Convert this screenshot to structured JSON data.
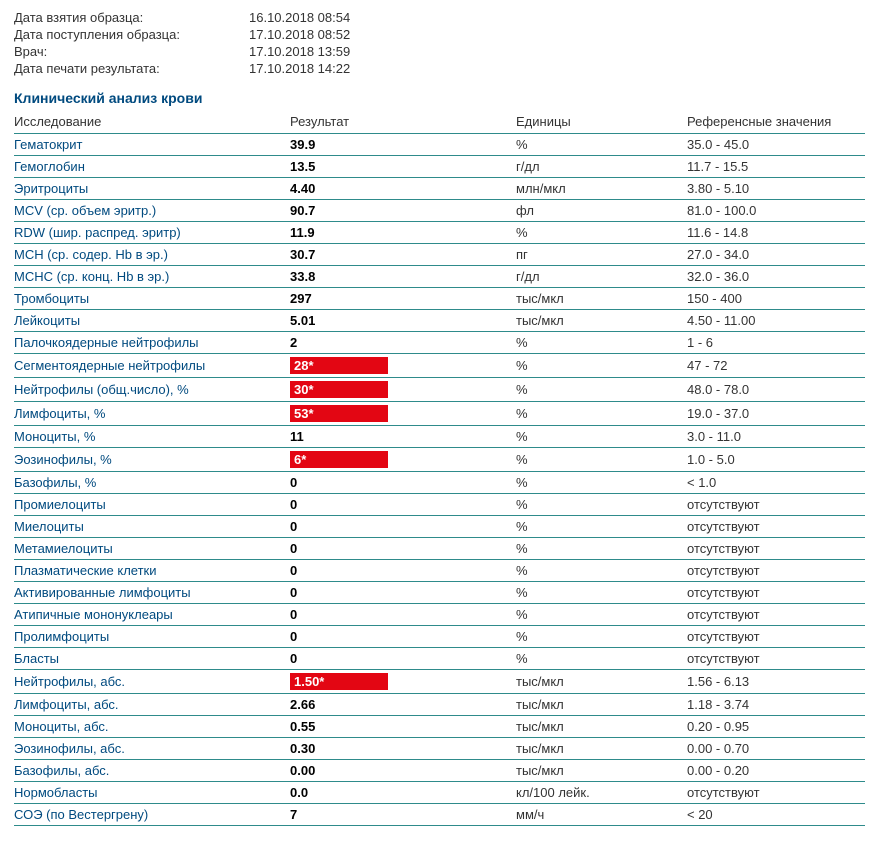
{
  "meta": [
    {
      "label": "Дата взятия образца:",
      "value": "16.10.2018 08:54"
    },
    {
      "label": "Дата поступления образца:",
      "value": "17.10.2018 08:52"
    },
    {
      "label": "Врач:",
      "value": "17.10.2018 13:59"
    },
    {
      "label": "Дата печати результата:",
      "value": "17.10.2018 14:22"
    }
  ],
  "section_title": "Клинический анализ крови",
  "columns": {
    "name": "Исследование",
    "result": "Результат",
    "units": "Единицы",
    "ref": "Референсные значения"
  },
  "flag_color": "#e30613",
  "rows": [
    {
      "name": "Гематокрит",
      "result": "39.9",
      "units": "%",
      "ref": "35.0 - 45.0",
      "flag": false
    },
    {
      "name": "Гемоглобин",
      "result": "13.5",
      "units": "г/дл",
      "ref": "11.7 - 15.5",
      "flag": false
    },
    {
      "name": "Эритроциты",
      "result": "4.40",
      "units": "млн/мкл",
      "ref": "3.80 - 5.10",
      "flag": false
    },
    {
      "name": "MCV (ср. объем эритр.)",
      "result": "90.7",
      "units": "фл",
      "ref": "81.0 - 100.0",
      "flag": false
    },
    {
      "name": "RDW (шир. распред. эритр)",
      "result": "11.9",
      "units": "%",
      "ref": "11.6 - 14.8",
      "flag": false
    },
    {
      "name": "MCH (ср. содер. Hb в эр.)",
      "result": "30.7",
      "units": "пг",
      "ref": "27.0 - 34.0",
      "flag": false
    },
    {
      "name": "MCHC (ср. конц. Hb в эр.)",
      "result": "33.8",
      "units": "г/дл",
      "ref": "32.0 - 36.0",
      "flag": false
    },
    {
      "name": "Тромбоциты",
      "result": "297",
      "units": "тыс/мкл",
      "ref": "150 - 400",
      "flag": false
    },
    {
      "name": "Лейкоциты",
      "result": "5.01",
      "units": "тыс/мкл",
      "ref": "4.50 - 11.00",
      "flag": false
    },
    {
      "name": "Палочкоядерные нейтрофилы",
      "result": "2",
      "units": "%",
      "ref": "1 - 6",
      "flag": false
    },
    {
      "name": "Сегментоядерные нейтрофилы",
      "result": "28*",
      "units": "%",
      "ref": "47 - 72",
      "flag": true
    },
    {
      "name": "Нейтрофилы (общ.число), %",
      "result": "30*",
      "units": "%",
      "ref": "48.0 - 78.0",
      "flag": true
    },
    {
      "name": "Лимфоциты, %",
      "result": "53*",
      "units": "%",
      "ref": "19.0 - 37.0",
      "flag": true
    },
    {
      "name": "Моноциты, %",
      "result": "11",
      "units": "%",
      "ref": "3.0 - 11.0",
      "flag": false
    },
    {
      "name": "Эозинофилы, %",
      "result": "6*",
      "units": "%",
      "ref": "1.0 - 5.0",
      "flag": true
    },
    {
      "name": "Базофилы, %",
      "result": "0",
      "units": "%",
      "ref": "< 1.0",
      "flag": false
    },
    {
      "name": "Промиелоциты",
      "result": "0",
      "units": "%",
      "ref": "отсутствуют",
      "flag": false
    },
    {
      "name": "Миелоциты",
      "result": "0",
      "units": "%",
      "ref": "отсутствуют",
      "flag": false
    },
    {
      "name": "Метамиелоциты",
      "result": "0",
      "units": "%",
      "ref": "отсутствуют",
      "flag": false
    },
    {
      "name": "Плазматические клетки",
      "result": "0",
      "units": "%",
      "ref": "отсутствуют",
      "flag": false
    },
    {
      "name": "Активированные лимфоциты",
      "result": "0",
      "units": "%",
      "ref": "отсутствуют",
      "flag": false
    },
    {
      "name": "Атипичные мононуклеары",
      "result": "0",
      "units": "%",
      "ref": "отсутствуют",
      "flag": false
    },
    {
      "name": "Пролимфоциты",
      "result": "0",
      "units": "%",
      "ref": "отсутствуют",
      "flag": false
    },
    {
      "name": "Бласты",
      "result": "0",
      "units": "%",
      "ref": "отсутствуют",
      "flag": false
    },
    {
      "name": "Нейтрофилы, абс.",
      "result": "1.50*",
      "units": "тыс/мкл",
      "ref": "1.56 - 6.13",
      "flag": true
    },
    {
      "name": "Лимфоциты, абс.",
      "result": "2.66",
      "units": "тыс/мкл",
      "ref": "1.18 - 3.74",
      "flag": false
    },
    {
      "name": "Моноциты, абс.",
      "result": "0.55",
      "units": "тыс/мкл",
      "ref": "0.20 - 0.95",
      "flag": false
    },
    {
      "name": "Эозинофилы, абс.",
      "result": "0.30",
      "units": "тыс/мкл",
      "ref": "0.00 - 0.70",
      "flag": false
    },
    {
      "name": "Базофилы, абс.",
      "result": "0.00",
      "units": "тыс/мкл",
      "ref": "0.00 - 0.20",
      "flag": false
    },
    {
      "name": "Нормобласты",
      "result": "0.0",
      "units": "кл/100 лейк.",
      "ref": "отсутствуют",
      "flag": false
    },
    {
      "name": "СОЭ (по Вестергрену)",
      "result": "7",
      "units": "мм/ч",
      "ref": "< 20",
      "flag": false
    }
  ]
}
